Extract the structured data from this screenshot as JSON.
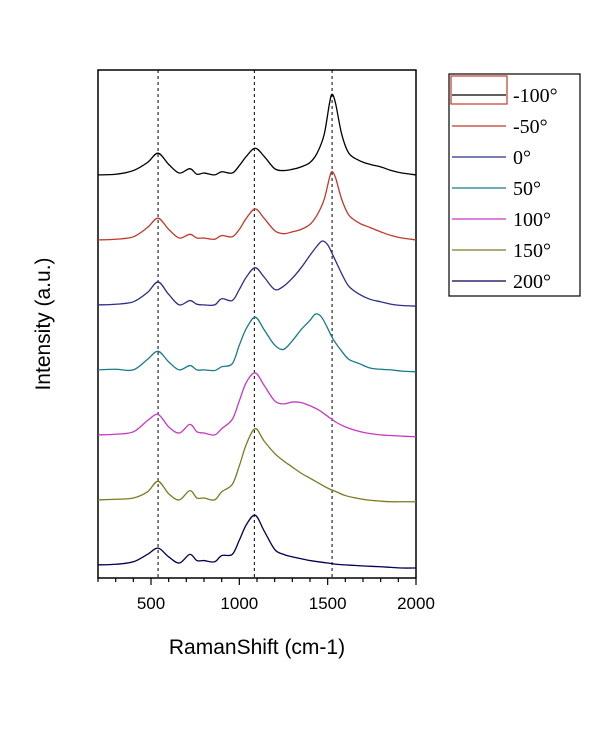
{
  "chart_data": {
    "type": "line",
    "xlabel": "RamanShift (cm-1)",
    "ylabel": "Intensity (a.u.)",
    "xlim": [
      200,
      2000
    ],
    "xticks": [
      "500",
      "1000",
      "1500",
      "2000"
    ],
    "y_tick_labels": "none",
    "reference_lines_x": [
      540,
      1085,
      1525
    ],
    "legend_placement": "outside right",
    "series": [
      {
        "name": "-100°",
        "color": "#000000",
        "offset": 6,
        "x": [
          200,
          300,
          400,
          480,
          540,
          600,
          660,
          720,
          760,
          800,
          860,
          900,
          960,
          1000,
          1040,
          1090,
          1140,
          1200,
          1250,
          1300,
          1350,
          1400,
          1440,
          1480,
          1510,
          1525,
          1545,
          1580,
          1620,
          1680,
          1740,
          1800,
          1860,
          1920,
          2000
        ],
        "y": [
          0.05,
          0.06,
          0.12,
          0.25,
          0.4,
          0.22,
          0.08,
          0.15,
          0.06,
          0.08,
          0.05,
          0.1,
          0.08,
          0.2,
          0.35,
          0.48,
          0.35,
          0.15,
          0.12,
          0.14,
          0.18,
          0.25,
          0.4,
          0.7,
          1.2,
          1.35,
          1.2,
          0.7,
          0.4,
          0.28,
          0.22,
          0.18,
          0.12,
          0.08,
          0.05
        ]
      },
      {
        "name": "-50°",
        "color": "#c0392b",
        "offset": 5,
        "x": [
          200,
          300,
          400,
          480,
          540,
          600,
          660,
          720,
          760,
          800,
          860,
          900,
          960,
          1000,
          1040,
          1090,
          1140,
          1200,
          1250,
          1300,
          1350,
          1400,
          1440,
          1480,
          1510,
          1525,
          1545,
          1580,
          1620,
          1680,
          1740,
          1800,
          1860,
          1920,
          2000
        ],
        "y": [
          0.05,
          0.06,
          0.1,
          0.25,
          0.4,
          0.22,
          0.08,
          0.14,
          0.08,
          0.08,
          0.06,
          0.12,
          0.1,
          0.22,
          0.4,
          0.55,
          0.4,
          0.2,
          0.15,
          0.18,
          0.22,
          0.3,
          0.45,
          0.7,
          1.05,
          1.15,
          1.05,
          0.7,
          0.45,
          0.32,
          0.25,
          0.18,
          0.12,
          0.08,
          0.05
        ]
      },
      {
        "name": "0°",
        "color": "#2c2c8a",
        "offset": 4,
        "x": [
          200,
          300,
          400,
          480,
          540,
          600,
          660,
          720,
          760,
          800,
          860,
          900,
          960,
          1000,
          1040,
          1090,
          1140,
          1200,
          1250,
          1300,
          1350,
          1400,
          1440,
          1470,
          1500,
          1530,
          1580,
          1620,
          1680,
          1740,
          1800,
          1860,
          1920,
          2000
        ],
        "y": [
          0.05,
          0.06,
          0.1,
          0.25,
          0.42,
          0.22,
          0.05,
          0.12,
          0.06,
          0.05,
          0.05,
          0.15,
          0.12,
          0.3,
          0.5,
          0.65,
          0.5,
          0.3,
          0.35,
          0.48,
          0.65,
          0.85,
          1.0,
          1.08,
          1.02,
          0.85,
          0.55,
          0.35,
          0.22,
          0.14,
          0.1,
          0.06,
          0.04,
          0.03
        ]
      },
      {
        "name": "50°",
        "color": "#1a7a8a",
        "offset": 3,
        "x": [
          200,
          300,
          400,
          480,
          540,
          600,
          660,
          720,
          760,
          800,
          860,
          900,
          960,
          1000,
          1040,
          1090,
          1140,
          1200,
          1250,
          1300,
          1350,
          1400,
          1430,
          1460,
          1490,
          1530,
          1580,
          1620,
          1680,
          1740,
          1800,
          1860,
          1920,
          2000
        ],
        "y": [
          0.05,
          0.06,
          0.05,
          0.22,
          0.35,
          0.18,
          0.05,
          0.12,
          0.05,
          0.05,
          0.04,
          0.1,
          0.15,
          0.45,
          0.72,
          0.9,
          0.7,
          0.45,
          0.38,
          0.52,
          0.7,
          0.85,
          0.95,
          0.92,
          0.78,
          0.55,
          0.35,
          0.22,
          0.15,
          0.08,
          0.06,
          0.05,
          0.03,
          0.02
        ]
      },
      {
        "name": "100°",
        "color": "#c837c8",
        "offset": 2,
        "x": [
          200,
          300,
          400,
          480,
          540,
          600,
          660,
          720,
          760,
          800,
          860,
          900,
          960,
          1000,
          1040,
          1090,
          1140,
          1200,
          1250,
          1300,
          1350,
          1400,
          1450,
          1500,
          1550,
          1600,
          1660,
          1720,
          1800,
          1860,
          1920,
          2000
        ],
        "y": [
          0.05,
          0.06,
          0.1,
          0.28,
          0.38,
          0.18,
          0.08,
          0.22,
          0.1,
          0.08,
          0.05,
          0.15,
          0.3,
          0.6,
          0.9,
          1.05,
          0.85,
          0.6,
          0.55,
          0.58,
          0.57,
          0.52,
          0.45,
          0.35,
          0.25,
          0.18,
          0.12,
          0.08,
          0.05,
          0.04,
          0.03,
          0.02
        ]
      },
      {
        "name": "150°",
        "color": "#7d7a1e",
        "offset": 1,
        "x": [
          200,
          300,
          400,
          480,
          540,
          600,
          660,
          720,
          760,
          800,
          860,
          900,
          960,
          1000,
          1040,
          1090,
          1140,
          1200,
          1250,
          1300,
          1350,
          1400,
          1450,
          1500,
          1550,
          1600,
          1660,
          1720,
          1800,
          1860,
          1920,
          2000
        ],
        "y": [
          0.05,
          0.06,
          0.08,
          0.18,
          0.35,
          0.15,
          0.05,
          0.2,
          0.08,
          0.08,
          0.05,
          0.18,
          0.3,
          0.6,
          0.95,
          1.2,
          1.0,
          0.8,
          0.68,
          0.58,
          0.48,
          0.4,
          0.32,
          0.24,
          0.18,
          0.12,
          0.08,
          0.05,
          0.03,
          0.02,
          0.02,
          0.02
        ]
      },
      {
        "name": "200°",
        "color": "#000050",
        "offset": 0,
        "x": [
          200,
          300,
          400,
          480,
          540,
          600,
          660,
          720,
          760,
          800,
          860,
          900,
          960,
          1000,
          1040,
          1090,
          1140,
          1200,
          1250,
          1300,
          1350,
          1400,
          1450,
          1500,
          1550,
          1600,
          1660,
          1720,
          1800,
          1860,
          1920,
          2000
        ],
        "y": [
          0.05,
          0.06,
          0.1,
          0.22,
          0.32,
          0.18,
          0.08,
          0.22,
          0.12,
          0.12,
          0.1,
          0.2,
          0.22,
          0.45,
          0.7,
          0.85,
          0.6,
          0.3,
          0.22,
          0.18,
          0.15,
          0.12,
          0.1,
          0.08,
          0.06,
          0.05,
          0.04,
          0.03,
          0.02,
          0.01,
          0.0,
          0.0
        ]
      }
    ]
  }
}
